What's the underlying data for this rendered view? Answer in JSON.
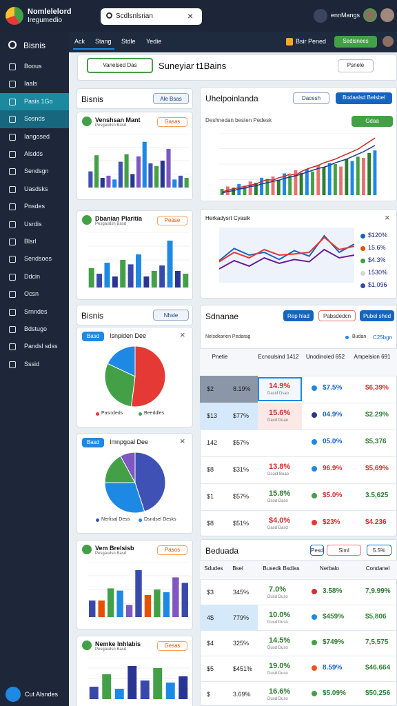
{
  "header": {
    "app_title": "Nomlelelord",
    "app_subtitle": "Iregumedio",
    "search": "Scdlsnlsrian",
    "user": "ennMangs"
  },
  "tabs": [
    "Ack",
    "Stang",
    "Stdle",
    "Yedie"
  ],
  "toolbar": {
    "left": "Bsir Pened",
    "right": "Sedisnees"
  },
  "sidebar": {
    "title": "Bisnis",
    "items": [
      "Boous",
      "Iaals",
      "Pasis 1Go",
      "Sosnds",
      "Iangosed",
      "Alsdds",
      "Sendsgn",
      "Uasdsks",
      "Pnsdes",
      "Usrdis",
      "Blsrl",
      "Sendsoes",
      "Ddcin",
      "Ocsn",
      "Srnndes",
      "Bdstugo",
      "Pandsl sdss",
      "Sssid"
    ],
    "footer": "Cut Alsndes"
  },
  "banner": {
    "button": "Vanelsed Das",
    "title": "Suneyiar t1Bains",
    "action": "Psnele"
  },
  "left_sections": [
    {
      "title": "Bisnis",
      "badge": "Ale Bsas"
    },
    {
      "title": "Bisnis",
      "badge": "Nhsle"
    }
  ],
  "left_cards": [
    {
      "title": "Venshsan Mant",
      "subtitle": "Pesgasdsn Basd",
      "chip": "Gasas",
      "type": "bar",
      "ylim": [
        0,
        100
      ],
      "colors": [
        "#3f51b5",
        "#43a047",
        "#283593",
        "#7e57c2",
        "#1e88e5"
      ],
      "values": [
        30,
        60,
        18,
        22,
        15,
        48,
        62,
        25,
        58,
        85,
        45,
        40,
        50,
        72,
        15,
        22,
        18
      ]
    },
    {
      "title": "Dbanian Plaritia",
      "subtitle": "Pesgasdsn Basd",
      "chip": "Pease",
      "type": "bar",
      "ylim": [
        0,
        100
      ],
      "colors": [
        "#43a047",
        "#3949ab",
        "#1e88e5",
        "#283593"
      ],
      "values": [
        35,
        25,
        45,
        20,
        50,
        42,
        60,
        20,
        30,
        40,
        85,
        30,
        25
      ]
    },
    {
      "title": "Isnpiden Dee",
      "badge": "Basd",
      "type": "pie",
      "colors": [
        "#e53935",
        "#43a047",
        "#1e88e5"
      ],
      "values": [
        52,
        30,
        18
      ],
      "legend": [
        "Pasndeds",
        "Beeddles"
      ]
    },
    {
      "title": "Imnpgoal Dee",
      "badge": "Basd",
      "type": "pie",
      "colors": [
        "#3f51b5",
        "#1e88e5",
        "#43a047",
        "#7e57c2"
      ],
      "values": [
        45,
        30,
        17,
        8
      ],
      "legend": [
        "Nerlisal Dess",
        "Dsndsel Desks"
      ]
    },
    {
      "title": "Vem Brelsisb",
      "subtitle": "Pesgasdsn Basd",
      "chip": "Pasos",
      "type": "bar",
      "ylim": [
        0,
        100
      ],
      "colors": [
        "#3949ab",
        "#e65100",
        "#43a047",
        "#1e88e5",
        "#7e57c2"
      ],
      "values": [
        30,
        30,
        52,
        48,
        22,
        85,
        40,
        50,
        45,
        72,
        62
      ]
    },
    {
      "title": "Nemke Inhlabis",
      "subtitle": "Pesgasdsn Basd",
      "chip": "Gesas",
      "type": "bar",
      "ylim": [
        0,
        100
      ],
      "colors": [
        "#3949ab",
        "#43a047",
        "#1e88e5",
        "#283593"
      ],
      "values": [
        30,
        60,
        25,
        80,
        45,
        75,
        40,
        55
      ]
    }
  ],
  "right_top": {
    "title": "Uhelpoinlanda",
    "button1": "Dacesh",
    "button2": "Bodaalsd Belsbel",
    "subtitle": "Deshnedan besten Pedesk",
    "chip": "Gdaa",
    "ylim": [
      0,
      100
    ],
    "bar_colors": [
      "#43a047",
      "#e57373",
      "#2e7d32",
      "#1e88e5"
    ],
    "bars": [
      10,
      14,
      12,
      18,
      15,
      22,
      20,
      28,
      26,
      30,
      24,
      35,
      32,
      40,
      36,
      42,
      38,
      48,
      45,
      52,
      50,
      46,
      58,
      55,
      62,
      60,
      68,
      72
    ],
    "series": [
      {
        "color": "#c62828",
        "values": [
          5,
          8,
          10,
          12,
          14,
          16,
          18,
          22,
          25,
          24,
          28,
          30,
          34,
          32,
          38,
          42,
          45,
          48,
          52,
          55,
          58,
          62,
          66,
          70,
          74,
          80,
          86,
          92
        ]
      },
      {
        "color": "#1e3a8a",
        "values": [
          3,
          6,
          7,
          10,
          11,
          14,
          15,
          18,
          20,
          22,
          24,
          27,
          29,
          31,
          34,
          37,
          40,
          43,
          45,
          48,
          52,
          55,
          58,
          62,
          66,
          70,
          75,
          80
        ]
      }
    ]
  },
  "right_mid": {
    "title": "Herkadysrt Cyasik",
    "ylim": [
      0,
      100
    ],
    "series": [
      {
        "color": "#1565c0",
        "values": [
          40,
          62,
          50,
          55,
          42,
          58,
          48,
          85,
          55,
          70
        ]
      },
      {
        "color": "#e53935",
        "values": [
          38,
          55,
          45,
          60,
          50,
          52,
          55,
          82,
          60,
          66
        ]
      },
      {
        "color": "#6a1b9a",
        "values": [
          25,
          40,
          30,
          45,
          35,
          42,
          38,
          60,
          45,
          50
        ]
      }
    ],
    "legend": [
      {
        "label": "$120%",
        "color": "#1565c0"
      },
      {
        "label": "15.6%",
        "color": "#e65100"
      },
      {
        "label": "$4.3%",
        "color": "#43a047"
      },
      {
        "label": "1530%",
        "color": "#cfd8dc"
      },
      {
        "label": "$1,096",
        "color": "#3949ab"
      }
    ]
  },
  "table1": {
    "title": "Sdnanae",
    "buttons": [
      "Rep hlad",
      "Pabsdedcn",
      "Pubel shed"
    ],
    "subtitle": "Nelsdkanen Pedarag",
    "legend": "Budan",
    "legend_value": "C25bgn",
    "columns": [
      "Pnetie",
      "Ecnoulsind 1412",
      "Unodinoled 652",
      "Ampelsion 691"
    ],
    "rows": [
      {
        "cells": [
          "$2",
          "8.19%",
          "14.9%",
          "$7.5%",
          "$6,39%"
        ],
        "sub": "Dasld Dsao",
        "tone": "#d32f2f",
        "dot": "#1e88e5",
        "tone2": "#1565c0",
        "tone3": "#d32f2f"
      },
      {
        "cells": [
          "$13",
          "$77%",
          "15.6%",
          "04.9%",
          "$2.29%"
        ],
        "sub": "Dacd Doao",
        "tone": "#d32f2f",
        "dot": "#283593",
        "tone2": "#1565c0",
        "tone3": "#2e7d32"
      },
      {
        "cells": [
          "142",
          "$57%",
          "",
          "05.0%",
          "$5,376"
        ],
        "sub": "",
        "tone": "#d32f2f",
        "dot": "#1e88e5",
        "tone2": "#1565c0",
        "tone3": "#2e7d32"
      },
      {
        "cells": [
          "$8",
          "$31%",
          "13.8%",
          "96.9%",
          "$5,69%"
        ],
        "sub": "Dsoid Boao",
        "tone": "#d32f2f",
        "dot": "#1e88e5",
        "tone2": "#d32f2f",
        "tone3": "#d32f2f"
      },
      {
        "cells": [
          "$1",
          "$57%",
          "15.8%",
          "$5.0%",
          "3.5,625"
        ],
        "sub": "Dsod Daso",
        "tone": "#2e7d32",
        "dot": "#43a047",
        "tone2": "#d32f2f",
        "tone3": "#2e7d32"
      },
      {
        "cells": [
          "$8",
          "$51%",
          "$4.0%",
          "$23%",
          "$4.236"
        ],
        "sub": "Dasd Dasd",
        "tone": "#d32f2f",
        "dot": "#e53935",
        "tone2": "#d32f2f",
        "tone3": "#d32f2f"
      }
    ]
  },
  "table2": {
    "title": "Beduada",
    "buttons": [
      "Pesd",
      "Siml",
      "5.5%"
    ],
    "columns": [
      "Sdudes",
      "Bsel",
      "Busedk Bsdlas",
      "Nerbalo",
      "Condanel"
    ],
    "rows": [
      {
        "cells": [
          "$3",
          "345%",
          "7.0%",
          "3.58%",
          "7,9.99%"
        ],
        "sub": "Dusd Duso",
        "dot": "#d32f2f",
        "tone2": "#2e7d32"
      },
      {
        "cells": [
          "4$",
          "779%",
          "10.0%",
          "$459%",
          "$5,806"
        ],
        "sub": "Dusd Duso",
        "dot": "#1e88e5",
        "tone2": "#2e7d32"
      },
      {
        "cells": [
          "$4",
          "325%",
          "14.5%",
          "$749%",
          "7,5,575"
        ],
        "sub": "Dusd Duso",
        "dot": "#43a047",
        "tone2": "#2e7d32"
      },
      {
        "cells": [
          "$5",
          "$451%",
          "19.0%",
          "8.59%",
          "$46.664"
        ],
        "sub": "Dusd Duso",
        "dot": "#f4511e",
        "tone2": "#1565c0"
      },
      {
        "cells": [
          "$",
          "3.69%",
          "16.6%",
          "$5.09%",
          "$50,256"
        ],
        "sub": "Dusd Duso",
        "dot": "#43a047",
        "tone2": "#2e7d32"
      }
    ]
  }
}
